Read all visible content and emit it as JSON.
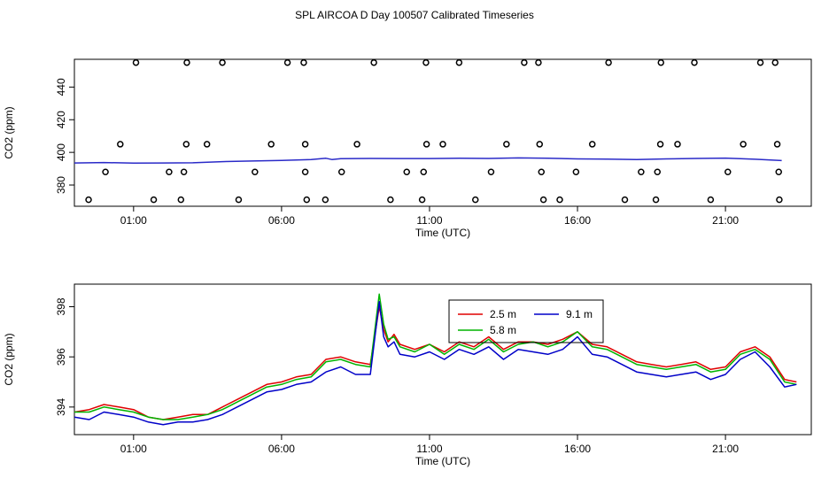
{
  "title": "SPL AIRCOA D  Day 100507  Calibrated Timeseries",
  "chart_data": [
    {
      "type": "scatter",
      "xlabel": "Time (UTC)",
      "ylabel": "CO2 (ppm)",
      "x_unit": "hours UTC",
      "xlim": [
        -1.0,
        23.9
      ],
      "ylim": [
        367,
        457
      ],
      "x_ticks": [
        1,
        6,
        11,
        16,
        21
      ],
      "x_tick_labels": [
        "01:00",
        "06:00",
        "11:00",
        "16:00",
        "21:00"
      ],
      "y_ticks": [
        380,
        400,
        420,
        440
      ],
      "y_tick_labels": [
        "380",
        "400",
        "420",
        "440"
      ],
      "grid": false,
      "series": [
        {
          "marker": "open-circle",
          "color": "#000000",
          "points": [
            [
              -0.52,
              371
            ],
            [
              0.05,
              388
            ],
            [
              0.55,
              405
            ],
            [
              1.08,
              455
            ],
            [
              1.68,
              371
            ],
            [
              2.2,
              388
            ],
            [
              2.6,
              371
            ],
            [
              2.7,
              388
            ],
            [
              2.78,
              405
            ],
            [
              2.8,
              455
            ],
            [
              3.48,
              405
            ],
            [
              4.0,
              455
            ],
            [
              4.55,
              371
            ],
            [
              5.1,
              388
            ],
            [
              5.65,
              405
            ],
            [
              6.2,
              455
            ],
            [
              6.75,
              455
            ],
            [
              6.8,
              405
            ],
            [
              6.8,
              388
            ],
            [
              6.85,
              371
            ],
            [
              7.48,
              371
            ],
            [
              8.03,
              388
            ],
            [
              8.55,
              405
            ],
            [
              9.12,
              455
            ],
            [
              9.68,
              371
            ],
            [
              10.23,
              388
            ],
            [
              10.75,
              371
            ],
            [
              10.8,
              388
            ],
            [
              10.88,
              455
            ],
            [
              10.9,
              405
            ],
            [
              11.45,
              405
            ],
            [
              12.0,
              455
            ],
            [
              12.55,
              371
            ],
            [
              13.08,
              388
            ],
            [
              13.6,
              405
            ],
            [
              14.2,
              455
            ],
            [
              14.68,
              455
            ],
            [
              14.72,
              405
            ],
            [
              14.78,
              388
            ],
            [
              14.85,
              371
            ],
            [
              15.4,
              371
            ],
            [
              15.95,
              388
            ],
            [
              16.5,
              405
            ],
            [
              17.05,
              455
            ],
            [
              17.6,
              371
            ],
            [
              18.15,
              388
            ],
            [
              18.65,
              371
            ],
            [
              18.7,
              388
            ],
            [
              18.8,
              405
            ],
            [
              18.82,
              455
            ],
            [
              19.38,
              405
            ],
            [
              19.95,
              455
            ],
            [
              20.5,
              371
            ],
            [
              21.08,
              388
            ],
            [
              21.6,
              405
            ],
            [
              22.18,
              455
            ],
            [
              22.68,
              455
            ],
            [
              22.75,
              405
            ],
            [
              22.8,
              388
            ],
            [
              22.82,
              371
            ]
          ]
        },
        {
          "name": "",
          "type": "line",
          "color": "#2a2ac8",
          "points": [
            [
              -1.0,
              393.5
            ],
            [
              0,
              393.8
            ],
            [
              1,
              393.4
            ],
            [
              2,
              393.5
            ],
            [
              3,
              393.6
            ],
            [
              4,
              394.3
            ],
            [
              5,
              394.7
            ],
            [
              6,
              395.1
            ],
            [
              7,
              395.6
            ],
            [
              7.5,
              396.4
            ],
            [
              7.7,
              395.6
            ],
            [
              8,
              396.1
            ],
            [
              9,
              396.3
            ],
            [
              10,
              396.2
            ],
            [
              11,
              396.2
            ],
            [
              12,
              396.4
            ],
            [
              13,
              396.3
            ],
            [
              14,
              396.6
            ],
            [
              15,
              396.4
            ],
            [
              16,
              396.0
            ],
            [
              17,
              395.9
            ],
            [
              18,
              395.6
            ],
            [
              19,
              396.0
            ],
            [
              20,
              396.3
            ],
            [
              21,
              396.5
            ],
            [
              22,
              395.8
            ],
            [
              22.9,
              395.0
            ]
          ]
        }
      ]
    },
    {
      "type": "line",
      "xlabel": "Time (UTC)",
      "ylabel": "CO2 (ppm)",
      "x_unit": "hours UTC",
      "xlim": [
        -1.0,
        23.9
      ],
      "ylim": [
        392.9,
        398.9
      ],
      "x_ticks": [
        1,
        6,
        11,
        16,
        21
      ],
      "x_tick_labels": [
        "01:00",
        "06:00",
        "11:00",
        "16:00",
        "21:00"
      ],
      "y_ticks": [
        394,
        396,
        398
      ],
      "y_tick_labels": [
        "394",
        "396",
        "398"
      ],
      "grid": false,
      "legend": {
        "placement": "top-center",
        "entries": [
          {
            "label": "2.5 m",
            "color": "#e00000"
          },
          {
            "label": "9.1 m",
            "color": "#0000c8"
          },
          {
            "label": "5.8 m",
            "color": "#00b400"
          }
        ]
      },
      "series": [
        {
          "name": "2.5 m",
          "color": "#e00000",
          "x": [
            -1.0,
            -0.5,
            0.0,
            0.5,
            1.0,
            1.5,
            2.0,
            2.5,
            3.0,
            3.5,
            4.0,
            4.5,
            5.0,
            5.5,
            6.0,
            6.5,
            7.0,
            7.5,
            8.0,
            8.5,
            9.0,
            9.3,
            9.45,
            9.6,
            9.8,
            10.0,
            10.5,
            11.0,
            11.5,
            12.0,
            12.5,
            13.0,
            13.5,
            14.0,
            14.5,
            15.0,
            15.5,
            16.0,
            16.5,
            17.0,
            17.5,
            18.0,
            18.5,
            19.0,
            19.5,
            20.0,
            20.5,
            21.0,
            21.5,
            22.0,
            22.5,
            23.0,
            23.4
          ],
          "values": [
            393.8,
            393.9,
            394.1,
            394.0,
            393.9,
            393.6,
            393.5,
            393.6,
            393.7,
            393.7,
            394.0,
            394.3,
            394.6,
            394.9,
            395.0,
            395.2,
            395.3,
            395.9,
            396.0,
            395.8,
            395.7,
            398.0,
            397.1,
            396.6,
            396.9,
            396.5,
            396.3,
            396.5,
            396.2,
            396.6,
            396.4,
            396.8,
            396.3,
            396.6,
            396.6,
            396.5,
            396.7,
            397.0,
            396.5,
            396.4,
            396.1,
            395.8,
            395.7,
            395.6,
            395.7,
            395.8,
            395.5,
            395.6,
            396.2,
            396.4,
            396.0,
            395.1,
            395.0
          ]
        },
        {
          "name": "5.8 m",
          "color": "#00b400",
          "x": [
            -1.0,
            -0.5,
            0.0,
            0.5,
            1.0,
            1.5,
            2.0,
            2.5,
            3.0,
            3.5,
            4.0,
            4.5,
            5.0,
            5.5,
            6.0,
            6.5,
            7.0,
            7.5,
            8.0,
            8.5,
            9.0,
            9.3,
            9.45,
            9.6,
            9.8,
            10.0,
            10.5,
            11.0,
            11.5,
            12.0,
            12.5,
            13.0,
            13.5,
            14.0,
            14.5,
            15.0,
            15.5,
            16.0,
            16.5,
            17.0,
            17.5,
            18.0,
            18.5,
            19.0,
            19.5,
            20.0,
            20.5,
            21.0,
            21.5,
            22.0,
            22.5,
            23.0,
            23.4
          ],
          "values": [
            393.8,
            393.8,
            394.0,
            393.9,
            393.8,
            393.6,
            393.5,
            393.5,
            393.6,
            393.7,
            393.9,
            394.2,
            394.5,
            394.8,
            394.9,
            395.1,
            395.2,
            395.8,
            395.9,
            395.7,
            395.6,
            398.5,
            397.3,
            396.7,
            396.8,
            396.4,
            396.2,
            396.5,
            396.1,
            396.5,
            396.3,
            396.7,
            396.2,
            396.5,
            396.6,
            396.4,
            396.6,
            397.0,
            396.4,
            396.3,
            396.0,
            395.7,
            395.6,
            395.5,
            395.6,
            395.7,
            395.4,
            395.5,
            396.1,
            396.3,
            395.9,
            395.0,
            394.9
          ]
        },
        {
          "name": "9.1 m",
          "color": "#0000c8",
          "x": [
            -1.0,
            -0.5,
            0.0,
            0.5,
            1.0,
            1.5,
            2.0,
            2.5,
            3.0,
            3.5,
            4.0,
            4.5,
            5.0,
            5.5,
            6.0,
            6.5,
            7.0,
            7.5,
            8.0,
            8.5,
            9.0,
            9.3,
            9.45,
            9.6,
            9.8,
            10.0,
            10.5,
            11.0,
            11.5,
            12.0,
            12.5,
            13.0,
            13.5,
            14.0,
            14.5,
            15.0,
            15.5,
            16.0,
            16.5,
            17.0,
            17.5,
            18.0,
            18.5,
            19.0,
            19.5,
            20.0,
            20.5,
            21.0,
            21.5,
            22.0,
            22.5,
            23.0,
            23.4
          ],
          "values": [
            393.6,
            393.5,
            393.8,
            393.7,
            393.6,
            393.4,
            393.3,
            393.4,
            393.4,
            393.5,
            393.7,
            394.0,
            394.3,
            394.6,
            394.7,
            394.9,
            395.0,
            395.4,
            395.6,
            395.3,
            395.3,
            398.2,
            396.8,
            396.4,
            396.6,
            396.1,
            396.0,
            396.2,
            395.9,
            396.3,
            396.1,
            396.4,
            395.9,
            396.3,
            396.2,
            396.1,
            396.3,
            396.8,
            396.1,
            396.0,
            395.7,
            395.4,
            395.3,
            395.2,
            395.3,
            395.4,
            395.1,
            395.3,
            395.9,
            396.2,
            395.6,
            394.8,
            394.9
          ]
        }
      ]
    }
  ]
}
